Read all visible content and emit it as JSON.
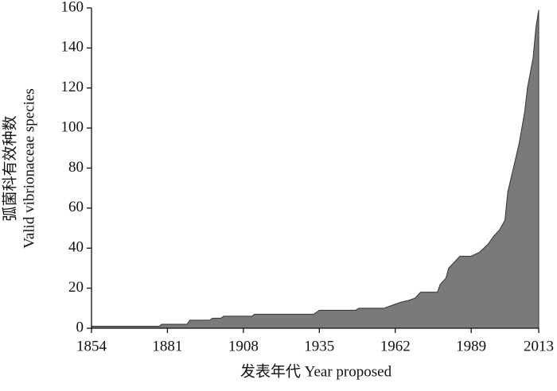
{
  "chart_data": {
    "type": "area",
    "x_label": "发表年代 Year proposed",
    "y_label": [
      "弧菌科有效种数",
      "Valid vibrionaceae species"
    ],
    "x": [
      1854,
      1878,
      1879,
      1888,
      1889,
      1896,
      1897,
      1900,
      1901,
      1911,
      1912,
      1933,
      1934,
      1935,
      1948,
      1949,
      1958,
      1962,
      1964,
      1967,
      1969,
      1971,
      1977,
      1978,
      1980,
      1981,
      1983,
      1985,
      1989,
      1992,
      1995,
      1997,
      1999,
      2001,
      2002,
      2004,
      2006,
      2008,
      2009,
      2011,
      2012,
      2013
    ],
    "values": [
      1,
      1,
      2,
      2,
      4,
      4,
      5,
      5,
      6,
      6,
      7,
      7,
      8,
      9,
      9,
      10,
      10,
      12,
      13,
      14,
      15,
      18,
      18,
      22,
      25,
      30,
      33,
      36,
      36,
      38,
      42,
      46,
      49,
      54,
      68,
      80,
      92,
      108,
      120,
      135,
      150,
      159
    ],
    "color": "#7a7a7a",
    "xlim": [
      1854,
      2013
    ],
    "xticks": [
      1854,
      1881,
      1908,
      1935,
      1962,
      1989,
      2013
    ],
    "ylim": [
      0,
      160
    ],
    "yticks": [
      0,
      20,
      40,
      60,
      80,
      100,
      120,
      140,
      160
    ],
    "grid": false
  }
}
